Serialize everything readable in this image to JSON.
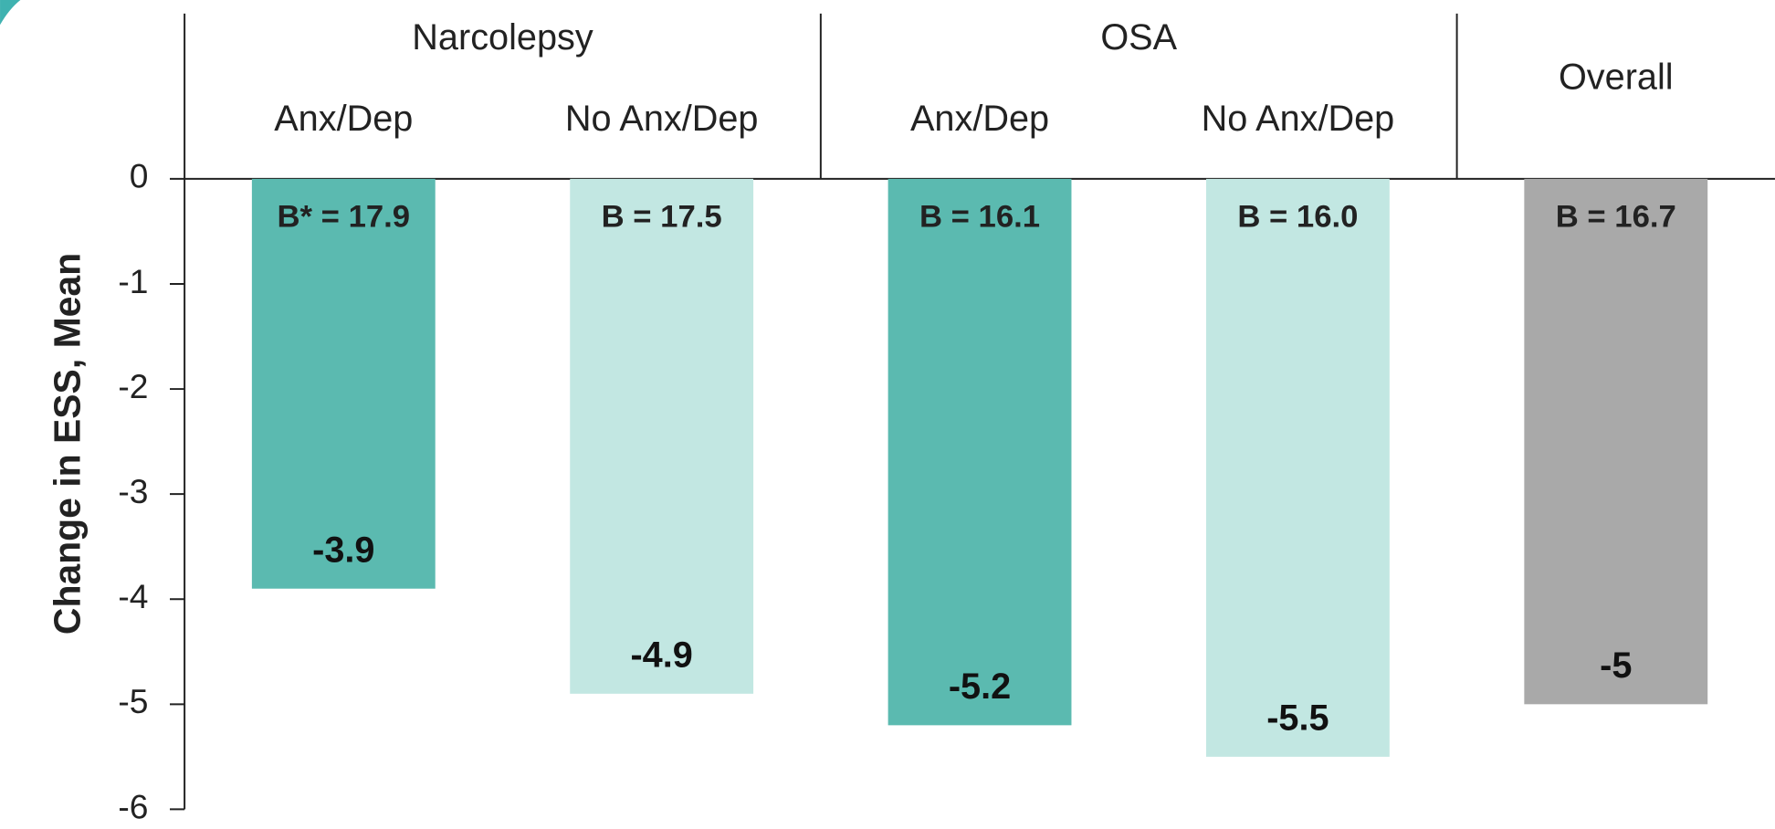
{
  "chart_data": {
    "type": "bar",
    "y_label": "Change in ESS, Mean",
    "groups": [
      {
        "name": "Narcolepsy",
        "count": 2
      },
      {
        "name": "OSA",
        "count": 2
      }
    ],
    "categories": [
      "Anx/Dep",
      "No Anx/Dep",
      "Anx/Dep",
      "No Anx/Dep",
      "Overall"
    ],
    "values": [
      -3.9,
      -4.9,
      -5.2,
      -5.5,
      -5.0
    ],
    "baseline_labels": [
      "B* = 17.9",
      "B = 17.5",
      "B = 16.1",
      "B = 16.0",
      "B = 16.7"
    ],
    "colors": [
      "#5bbab0",
      "#c2e7e2",
      "#5bbab0",
      "#c2e7e2",
      "#a9a9a9"
    ],
    "ylim": [
      -6,
      0
    ],
    "yticks": [
      0,
      -1,
      -2,
      -3,
      -4,
      -5,
      -6
    ]
  }
}
